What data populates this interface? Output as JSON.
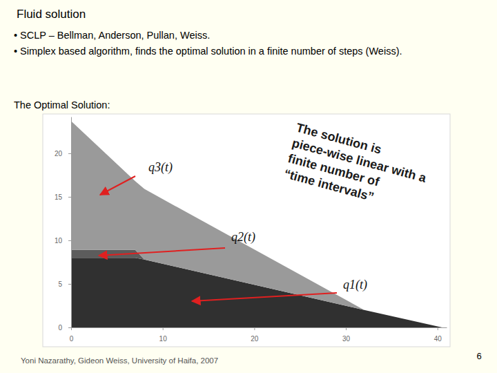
{
  "slide": {
    "title": "Fluid solution",
    "bullets": [
      "• SCLP – Bellman, Anderson, Pullan, Weiss.",
      "• Simplex based algorithm, finds the optimal solution in a finite number of steps (Weiss)."
    ],
    "subtitle": "The Optimal Solution:",
    "callout": [
      "The solution is",
      "piece-wise linear with a",
      "finite number of",
      "“time intervals”"
    ],
    "footer": "Yoni Nazarathy, Gideon Weiss, University of Haifa, 2007",
    "page": 6
  },
  "chart_data": {
    "type": "area",
    "stacked": true,
    "grid": false,
    "x": [
      0,
      7,
      8,
      32,
      40.5
    ],
    "series": [
      {
        "name": "q1(t)",
        "color": "#303030",
        "values": [
          8,
          8,
          7.8,
          2.0,
          0
        ]
      },
      {
        "name": "q2(t)",
        "color": "#5c5c5c",
        "values": [
          0.9,
          0.9,
          0,
          0,
          0
        ]
      },
      {
        "name": "q3(t)",
        "color": "#9a9a9a",
        "values": [
          14.8,
          7.9,
          8.1,
          0,
          0
        ]
      }
    ],
    "xlim": [
      0,
      41
    ],
    "ylim": [
      0,
      24.2
    ],
    "xticks": [
      0,
      10,
      20,
      30,
      40
    ],
    "yticks": [
      0,
      5,
      10,
      15,
      20
    ]
  }
}
